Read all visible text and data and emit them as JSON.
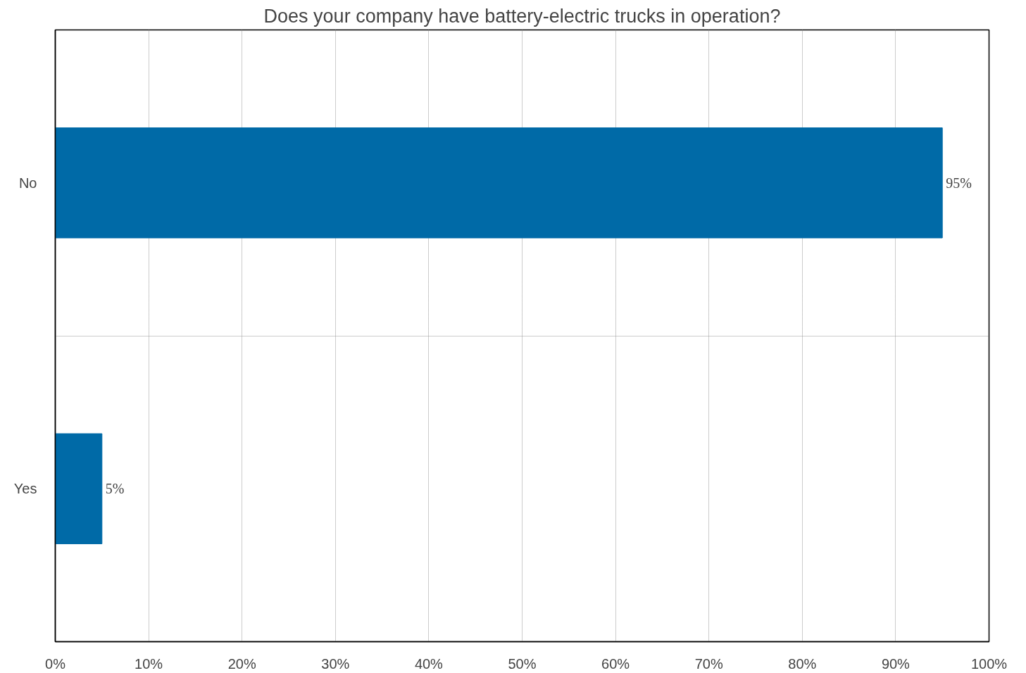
{
  "chart_data": {
    "type": "bar",
    "orientation": "horizontal",
    "title": "Does your company have battery-electric trucks in operation?",
    "categories": [
      "No",
      "Yes"
    ],
    "values": [
      95,
      5
    ],
    "value_labels": [
      "95%",
      "5%"
    ],
    "color": "#006aa7",
    "xlim": [
      0,
      100
    ],
    "xticks": [
      {
        "value": 0,
        "label": "0%"
      },
      {
        "value": 10,
        "label": "10%"
      },
      {
        "value": 20,
        "label": "20%"
      },
      {
        "value": 30,
        "label": "30%"
      },
      {
        "value": 40,
        "label": "40%"
      },
      {
        "value": 50,
        "label": "50%"
      },
      {
        "value": 60,
        "label": "60%"
      },
      {
        "value": 70,
        "label": "70%"
      },
      {
        "value": 80,
        "label": "80%"
      },
      {
        "value": 90,
        "label": "90%"
      },
      {
        "value": 100,
        "label": "100%"
      }
    ],
    "grid": true
  }
}
